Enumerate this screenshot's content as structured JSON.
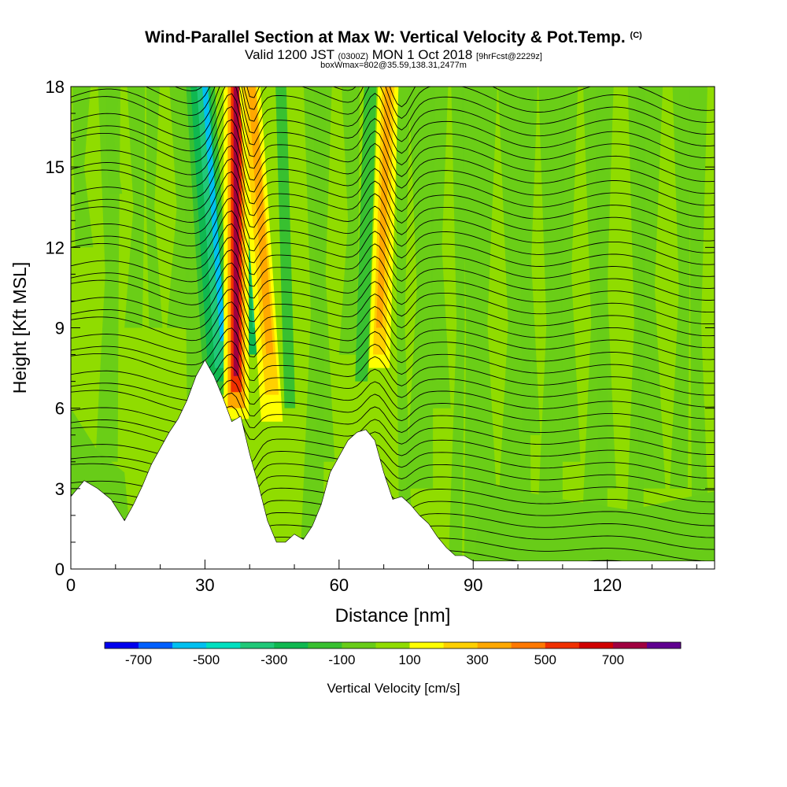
{
  "titles": {
    "main": "Wind-Parallel Section at Max W: Vertical Velocity & Pot.Temp.",
    "copyright": "(C)",
    "valid_prefix": "Valid 1200 JST",
    "valid_utc": "(0300Z)",
    "valid_date": "MON 1 Oct 2018",
    "forecast": "[9hrFcst@2229z]",
    "boxinfo": "boxWmax=802@35.59,138.31,2477m"
  },
  "chart_data": {
    "type": "heatmap",
    "xlabel": "Distance [nm]",
    "ylabel": "Height [Kft MSL]",
    "xlim": [
      0,
      144
    ],
    "ylim": [
      0,
      18
    ],
    "xticks": [
      0,
      30,
      60,
      90,
      120
    ],
    "yticks": [
      0,
      3,
      6,
      9,
      12,
      15,
      18
    ],
    "colorbar": {
      "label": "Vertical Velocity [cm/s]",
      "tick_labels": [
        "-700",
        "-500",
        "-300",
        "-100",
        "100",
        "300",
        "500",
        "700"
      ],
      "bins": [
        -800,
        -700,
        -600,
        -500,
        -400,
        -300,
        -200,
        -100,
        0,
        100,
        200,
        300,
        400,
        500,
        600,
        700,
        800
      ],
      "colors": [
        "#0000ee",
        "#0060ff",
        "#00c0f0",
        "#00e0c0",
        "#20c878",
        "#10b850",
        "#38c030",
        "#68cc18",
        "#90dc00",
        "#ffff00",
        "#ffd000",
        "#ffa800",
        "#ff7800",
        "#f03000",
        "#d00000",
        "#a00040",
        "#600090"
      ]
    },
    "background_bin": "0 to 100",
    "terrain_height_kft": {
      "x": [
        0,
        3,
        6,
        9,
        12,
        14,
        16,
        18,
        20,
        22,
        24,
        26,
        28,
        30,
        32,
        34,
        36,
        38,
        40,
        42,
        44,
        46,
        48,
        50,
        52,
        54,
        56,
        58,
        60,
        62,
        64,
        66,
        68,
        70,
        72,
        74,
        76,
        78,
        80,
        82,
        84,
        86,
        88,
        90,
        95,
        100,
        110,
        120,
        130,
        144
      ],
      "height": [
        2.7,
        3.3,
        3.0,
        2.6,
        1.8,
        2.4,
        3.1,
        3.9,
        4.5,
        5.1,
        5.6,
        6.3,
        7.2,
        7.8,
        7.2,
        6.4,
        5.5,
        5.7,
        4.3,
        3.1,
        1.8,
        1.0,
        1.0,
        1.3,
        1.1,
        1.6,
        2.4,
        3.6,
        4.2,
        4.8,
        5.1,
        5.2,
        4.8,
        3.6,
        2.6,
        2.7,
        2.4,
        2.0,
        1.7,
        1.2,
        0.8,
        0.5,
        0.5,
        0.3,
        0.3,
        0.3,
        0.3,
        0.3,
        0.3,
        0.3
      ]
    },
    "features": [
      {
        "kind": "updraft",
        "x": 37,
        "x_top": 37,
        "y_range": [
          5.6,
          18
        ],
        "w_cm_s": 802
      },
      {
        "kind": "downdraft",
        "x": 33,
        "x_top": 29,
        "y_range": [
          6.5,
          18
        ],
        "w_cm_s": -500
      },
      {
        "kind": "updraft",
        "x": 45,
        "x_top": 40,
        "y_range": [
          5.5,
          18
        ],
        "w_cm_s": 350
      },
      {
        "kind": "updraft",
        "x": 69,
        "x_top": 71,
        "y_range": [
          7.5,
          18
        ],
        "w_cm_s": 300
      }
    ]
  }
}
